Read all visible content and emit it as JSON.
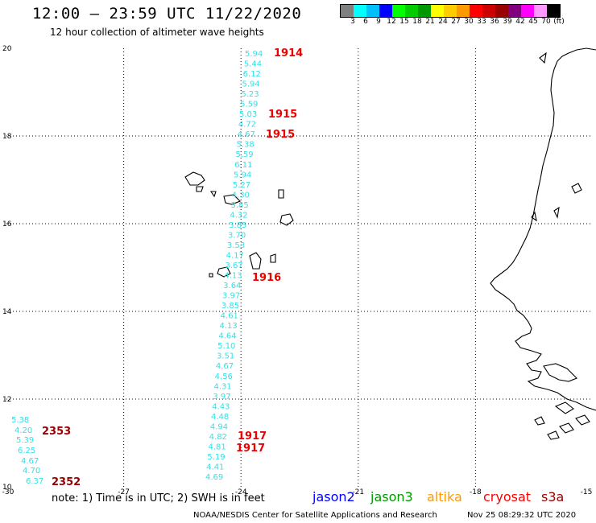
{
  "header": {
    "title": "12:00 – 23:59 UTC 11/22/2020",
    "subtitle": "12 hour collection of altimeter wave heights"
  },
  "scale": {
    "colors": [
      "#808080",
      "#00ffff",
      "#00bfff",
      "#0000ff",
      "#00ff00",
      "#00cc00",
      "#009900",
      "#ffff00",
      "#ffcc00",
      "#ff9900",
      "#ff0000",
      "#cc0000",
      "#990000",
      "#800080",
      "#ff00ff",
      "#ff99ff",
      "#000000"
    ],
    "labels": [
      "3",
      "6",
      "9",
      "12",
      "15",
      "18",
      "21",
      "24",
      "27",
      "30",
      "33",
      "36",
      "39",
      "42",
      "45",
      "70",
      "(ft)"
    ]
  },
  "axes": {
    "lon_labels": [
      "-30",
      "-27",
      "-24",
      "-21",
      "-18",
      "-15"
    ],
    "lat_labels": [
      "20",
      "18",
      "16",
      "14",
      "12",
      "10"
    ]
  },
  "legend": {
    "jason2": {
      "label": "jason2",
      "color": "#0000ff"
    },
    "jason3": {
      "label": "jason3",
      "color": "#009900"
    },
    "altika": {
      "label": "altika",
      "color": "#ff9900"
    },
    "cryosat": {
      "label": "cryosat",
      "color": "#ff0000"
    },
    "s3a": {
      "label": "s3a",
      "color": "#990000"
    }
  },
  "footer": {
    "note": "note: 1) Time is in UTC; 2) SWH is in feet",
    "credit": "NOAA/NESDIS Center for Satellite Applications and Research",
    "timestamp": "Nov 25 08:29:32 UTC 2020"
  },
  "chart_data": {
    "type": "map",
    "lon_range": [
      -30,
      -15
    ],
    "lat_range": [
      10,
      20
    ],
    "grid": true,
    "tracks": [
      {
        "satellite": "cryosat",
        "wave_heights_ft": [
          "5.94",
          "5.44",
          "6.12",
          "5.94",
          "5.23",
          "5.59",
          "5.03",
          "4.72",
          "4.67",
          "5.38",
          "5.59",
          "6.11",
          "5.94",
          "5.27",
          "4.30",
          "3.85",
          "4.32",
          "3.85",
          "3.70",
          "3.53",
          "4.17",
          "3.67",
          "4.13",
          "3.64",
          "3.97",
          "3.85",
          "4.61",
          "4.13",
          "4.64",
          "5.10",
          "3.51",
          "4.67",
          "4.56",
          "4.31",
          "3.97",
          "4.43",
          "4.48",
          "4.94",
          "4.82",
          "4.81",
          "5.19",
          "4.41",
          "4.69"
        ],
        "time_labels": [
          "1914",
          "1915",
          "1915",
          "1916",
          "1917",
          "1917"
        ]
      },
      {
        "satellite": "s3a",
        "wave_heights_ft": [
          "5.38",
          "4.20",
          "5.39",
          "6.25",
          "4.67",
          "4.70",
          "6.37"
        ],
        "time_labels": [
          "2353",
          "2352"
        ]
      }
    ]
  }
}
